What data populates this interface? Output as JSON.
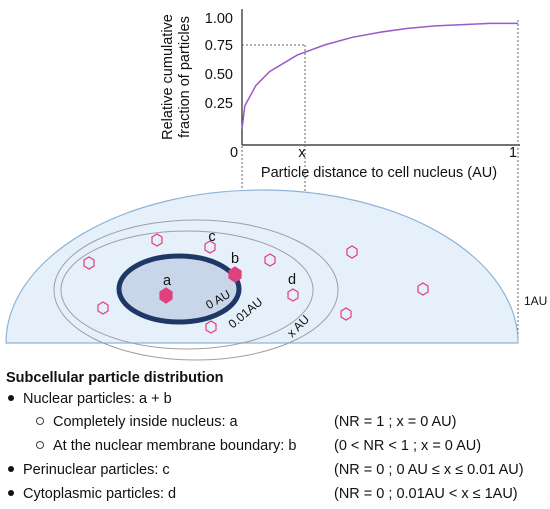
{
  "chart": {
    "ylabel_line1": "Relative cumulative",
    "ylabel_line2": "fraction of particles",
    "xlabel": "Particle distance to cell nucleus (AU)",
    "y_ticks": [
      "1.00",
      "0.75",
      "0.50",
      "0.25"
    ],
    "x_tick_0": "0",
    "x_tick_x": "x",
    "x_tick_1": "1",
    "chart_data": {
      "type": "line",
      "title": "",
      "xlabel": "Particle distance to cell nucleus (AU)",
      "ylabel": "Relative cumulative fraction of particles",
      "xlim": [
        0,
        1
      ],
      "ylim": [
        0,
        1
      ],
      "grid": false,
      "series": [
        {
          "color": "#9b59c9",
          "x": [
            0,
            0.01,
            0.05,
            0.1,
            0.2,
            0.3,
            0.4,
            0.5,
            0.6,
            0.7,
            0.8,
            0.9,
            1.0
          ],
          "y": [
            0.12,
            0.3,
            0.46,
            0.57,
            0.7,
            0.78,
            0.84,
            0.88,
            0.91,
            0.93,
            0.94,
            0.95,
            0.95
          ]
        }
      ],
      "reference": {
        "x_label": "x",
        "y": 0.75
      }
    }
  },
  "cell": {
    "label_0au": "0 AU",
    "label_001au": "0.01AU",
    "label_xau": "x AU",
    "label_1au": "1AU",
    "label_a": "a",
    "label_b": "b",
    "label_c": "c",
    "label_d": "d",
    "colors": {
      "cytoplasm": "#e6f0fa",
      "cell_border": "#8fb3d6",
      "nucleus_fill": "#c9d6ea",
      "nucleus_membrane": "#1f3766",
      "particle": "#e0407e"
    }
  },
  "legend": {
    "title": "Subcellular particle distribution",
    "nuclear": "Nuclear particles:  a + b",
    "inside": "Completely inside nucleus:  a",
    "inside_cond": "(NR = 1 ; x = 0 AU)",
    "boundary": "At the nuclear membrane boundary:  b",
    "boundary_cond": "(0 < NR < 1 ; x = 0 AU)",
    "perinuclear": "Perinuclear particles:  c",
    "perinuclear_cond": "(NR = 0 ; 0 AU ≤ x ≤ 0.01 AU)",
    "cytoplasmic": "Cytoplasmic particles:  d",
    "cytoplasmic_cond": "(NR = 0 ; 0.01AU < x ≤ 1AU)"
  }
}
